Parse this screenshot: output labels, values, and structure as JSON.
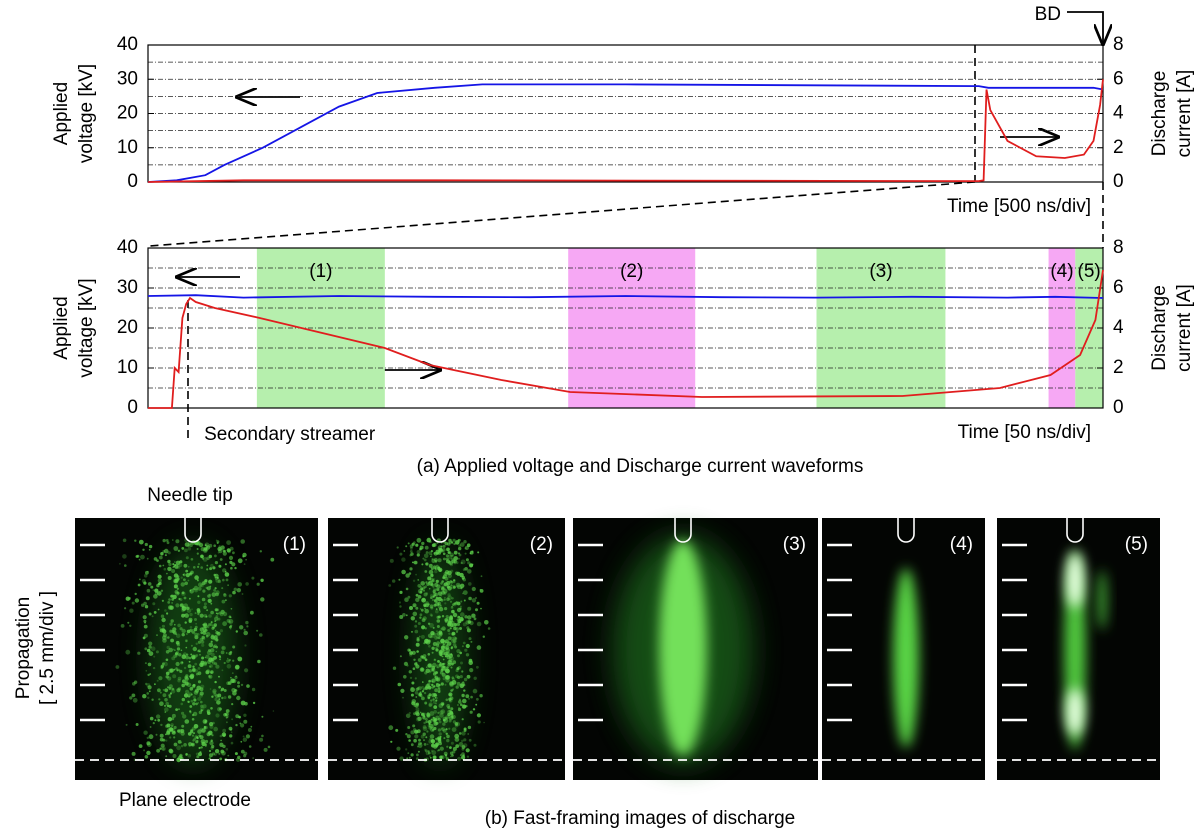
{
  "chart_data": [
    {
      "type": "line",
      "xlabel": "Time [500 ns/div]",
      "ylabel": [
        "Applied",
        "voltage [kV]"
      ],
      "y2label": [
        "Discharge",
        "current [A]"
      ],
      "xlim": [
        0,
        10
      ],
      "ylim": [
        0,
        40
      ],
      "yticks": [
        0,
        10,
        20,
        30,
        40
      ],
      "y2lim": [
        0,
        8
      ],
      "y2ticks": [
        0,
        2,
        4,
        6,
        8
      ],
      "grid": true,
      "series": [
        {
          "color": "#1515e6",
          "x": [
            0,
            0.3,
            0.6,
            0.8,
            1.2,
            1.6,
            2.0,
            2.4,
            3.0,
            3.5,
            5.0,
            8.7,
            8.8,
            9.5,
            9.9,
            10
          ],
          "values": [
            0,
            0.5,
            2,
            5,
            10,
            16,
            22,
            26,
            27.5,
            28.5,
            28.5,
            28,
            27.5,
            27.5,
            27.5,
            27
          ]
        },
        {
          "color": "#e01e1e",
          "axis": "y2",
          "x": [
            0,
            1,
            3,
            8.7,
            8.75,
            8.78,
            8.82,
            9.0,
            9.3,
            9.6,
            9.8,
            9.9,
            9.97,
            10
          ],
          "values": [
            0,
            0.1,
            0.1,
            0.05,
            0.1,
            5.4,
            4.2,
            2.4,
            1.5,
            1.4,
            1.6,
            2.4,
            4.5,
            6
          ]
        }
      ],
      "annotations": [
        {
          "text": "BD",
          "x": 10
        }
      ]
    },
    {
      "type": "line",
      "xlabel": "Time [50 ns/div]",
      "ylabel": [
        "Applied",
        "voltage [kV]"
      ],
      "y2label": [
        "Discharge",
        "current [A]"
      ],
      "xlim": [
        0,
        10
      ],
      "ylim": [
        0,
        40
      ],
      "yticks": [
        0,
        10,
        20,
        30,
        40
      ],
      "y2lim": [
        0,
        8
      ],
      "y2ticks": [
        0,
        2,
        4,
        6,
        8
      ],
      "grid": true,
      "regions": [
        {
          "label": "(1)",
          "x": [
            1.14,
            2.48
          ],
          "color": "#b6efad"
        },
        {
          "label": "(2)",
          "x": [
            4.4,
            5.73
          ],
          "color": "#f6a8f4"
        },
        {
          "label": "(3)",
          "x": [
            7.0,
            8.35
          ],
          "color": "#b6efad"
        },
        {
          "label": "(4)",
          "x": [
            9.43,
            9.71
          ],
          "color": "#f6a8f4"
        },
        {
          "label": "(5)",
          "x": [
            9.71,
            10
          ],
          "color": "#b6efad"
        }
      ],
      "series": [
        {
          "color": "#1515e6",
          "x": [
            0,
            0.5,
            1,
            2,
            3,
            4,
            5,
            6,
            7,
            8,
            9,
            9.5,
            10
          ],
          "values": [
            28,
            28.2,
            27.6,
            28,
            27.8,
            27.7,
            28,
            27.7,
            27.6,
            27.8,
            27.6,
            27.8,
            27.5
          ]
        },
        {
          "color": "#e01e1e",
          "axis": "y2",
          "x": [
            0,
            0.25,
            0.28,
            0.32,
            0.36,
            0.4,
            0.44,
            0.5,
            0.7,
            1.17,
            2.48,
            2.95,
            3.7,
            4.42,
            5.8,
            7.9,
            8.92,
            9.45,
            9.76,
            9.92,
            10
          ],
          "values": [
            0,
            0,
            2,
            1.8,
            4.5,
            5.2,
            5.5,
            5.3,
            5.0,
            4.5,
            3,
            2.15,
            1.4,
            0.8,
            0.55,
            0.6,
            1,
            1.65,
            2.65,
            4.4,
            6.9
          ]
        }
      ],
      "annotations": [
        {
          "text": "Secondary streamer",
          "x": 0.42
        }
      ]
    }
  ],
  "caption_a": "(a) Applied voltage and Discharge current waveforms",
  "images": {
    "needle_label": "Needle tip",
    "plane_label": "Plane electrode",
    "axis_label": [
      "Propagation",
      "[ 2.5 mm/div ]"
    ],
    "panels": [
      "(1)",
      "(2)",
      "(3)",
      "(4)",
      "(5)"
    ],
    "caption": "(b) Fast-framing  images of discharge"
  }
}
